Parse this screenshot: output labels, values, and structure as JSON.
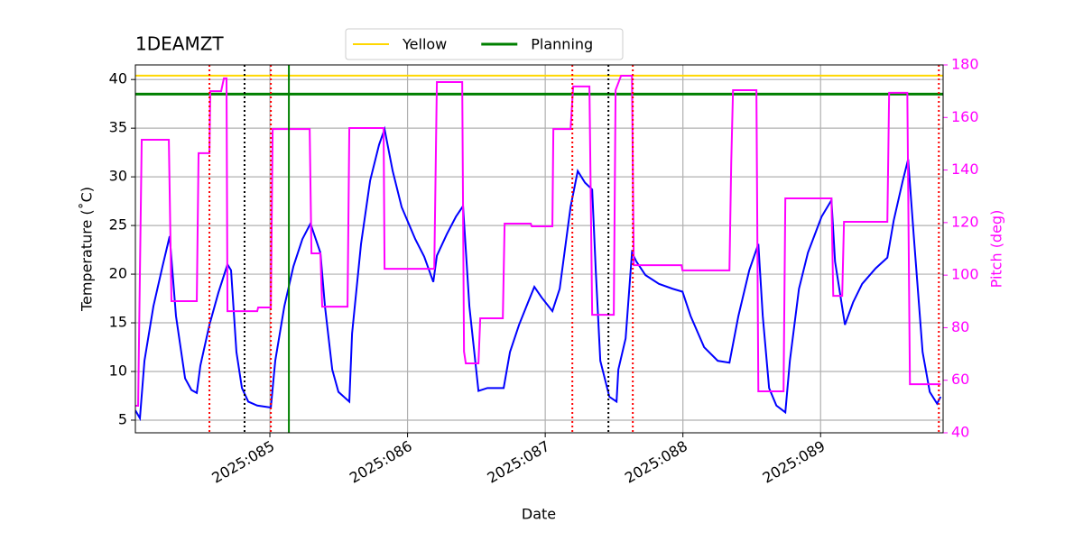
{
  "chart_data": {
    "type": "line",
    "title": "1DEAMZT",
    "xlabel": "Date",
    "ylabel": "Temperature (˚C)",
    "y2label": "Pitch (deg)",
    "y2color": "#ff00ff",
    "xlim": [
      84.023,
      89.89
    ],
    "xticks": [
      {
        "value": 85,
        "label": "2025:085"
      },
      {
        "value": 86,
        "label": "2025:086"
      },
      {
        "value": 87,
        "label": "2025:087"
      },
      {
        "value": 88,
        "label": "2025:088"
      },
      {
        "value": 89,
        "label": "2025:089"
      }
    ],
    "ylim": [
      3.7,
      41.5
    ],
    "yticks": [
      5,
      10,
      15,
      20,
      25,
      30,
      35,
      40
    ],
    "y2lim": [
      40,
      180
    ],
    "y2ticks": [
      40,
      60,
      80,
      100,
      120,
      140,
      160,
      180
    ],
    "grid": true,
    "legend": "upper center",
    "hlines": [
      {
        "name": "Yellow",
        "color": "#ffd700",
        "value": 40.4,
        "width": 2
      },
      {
        "name": "Planning",
        "color": "#008000",
        "value": 38.5,
        "width": 3
      }
    ],
    "vlines": [
      {
        "x": 84.561,
        "color": "#ff0000",
        "dotted": true
      },
      {
        "x": 85.007,
        "color": "#ff0000",
        "dotted": true
      },
      {
        "x": 87.197,
        "color": "#ff0000",
        "dotted": true
      },
      {
        "x": 87.636,
        "color": "#ff0000",
        "dotted": true
      },
      {
        "x": 89.859,
        "color": "#ff0000",
        "dotted": true
      },
      {
        "x": 84.816,
        "color": "#000000",
        "dotted": true
      },
      {
        "x": 87.459,
        "color": "#000000",
        "dotted": true
      },
      {
        "x": 85.138,
        "color": "#008000",
        "dotted": false
      }
    ],
    "series": [
      {
        "color": "#0000ff",
        "x": [
          84.023,
          84.056,
          84.089,
          84.154,
          84.22,
          84.272,
          84.318,
          84.384,
          84.43,
          84.469,
          84.495,
          84.561,
          84.626,
          84.692,
          84.718,
          84.757,
          84.797,
          84.843,
          84.908,
          85.007,
          85.039,
          85.105,
          85.171,
          85.236,
          85.295,
          85.367,
          85.4,
          85.453,
          85.498,
          85.577,
          85.597,
          85.662,
          85.728,
          85.793,
          85.833,
          85.892,
          85.957,
          86.056,
          86.121,
          86.187,
          86.213,
          86.285,
          86.351,
          86.403,
          86.449,
          86.515,
          86.58,
          86.698,
          86.744,
          86.81,
          86.875,
          86.921,
          86.974,
          87.052,
          87.105,
          87.184,
          87.236,
          87.289,
          87.341,
          87.367,
          87.4,
          87.466,
          87.518,
          87.531,
          87.584,
          87.63,
          87.662,
          87.728,
          87.826,
          87.925,
          87.997,
          88.056,
          88.154,
          88.253,
          88.338,
          88.403,
          88.482,
          88.548,
          88.58,
          88.626,
          88.679,
          88.744,
          88.777,
          88.843,
          88.908,
          89.007,
          89.079,
          89.105,
          89.177,
          89.236,
          89.302,
          89.4,
          89.485,
          89.531,
          89.597,
          89.636,
          89.676,
          89.741,
          89.793,
          89.846,
          89.872
        ],
        "values": [
          6.0,
          5.2,
          11.1,
          16.7,
          20.8,
          23.9,
          15.7,
          9.3,
          8.1,
          7.8,
          10.6,
          14.8,
          18.1,
          21.0,
          20.4,
          12.0,
          8.3,
          6.9,
          6.5,
          6.3,
          11.1,
          16.7,
          20.8,
          23.6,
          25.2,
          22.2,
          16.7,
          10.2,
          7.9,
          6.9,
          13.9,
          23.1,
          29.6,
          33.3,
          34.9,
          30.6,
          26.9,
          23.6,
          21.8,
          19.2,
          21.9,
          24.1,
          25.9,
          27.0,
          16.7,
          8.0,
          8.3,
          8.3,
          12.0,
          14.8,
          17.1,
          18.7,
          17.6,
          16.2,
          18.5,
          26.9,
          30.6,
          29.4,
          28.7,
          20.4,
          11.1,
          7.4,
          6.9,
          10.2,
          13.4,
          22.2,
          21.3,
          19.9,
          19.0,
          18.5,
          18.2,
          15.7,
          12.5,
          11.1,
          10.9,
          15.7,
          20.4,
          23.1,
          15.7,
          8.3,
          6.5,
          5.8,
          11.1,
          18.5,
          22.2,
          25.9,
          27.6,
          21.3,
          14.8,
          17.1,
          19.0,
          20.6,
          21.7,
          25.5,
          29.6,
          31.8,
          24.1,
          12.0,
          7.9,
          6.7,
          7.4
        ]
      },
      {
        "color": "#ff00ff",
        "axis": "y2",
        "x": [
          84.023,
          84.043,
          84.069,
          84.266,
          84.285,
          84.469,
          84.482,
          84.561,
          84.567,
          84.646,
          84.666,
          84.685,
          84.692,
          84.908,
          84.915,
          85.007,
          85.02,
          85.289,
          85.302,
          85.367,
          85.38,
          85.564,
          85.577,
          85.826,
          85.833,
          86.194,
          86.207,
          86.213,
          86.397,
          86.41,
          86.423,
          86.515,
          86.528,
          86.692,
          86.705,
          86.895,
          86.902,
          87.052,
          87.059,
          87.184,
          87.203,
          87.321,
          87.341,
          87.498,
          87.511,
          87.551,
          87.63,
          87.643,
          87.99,
          87.997,
          88.338,
          88.351,
          88.364,
          88.534,
          88.548,
          88.731,
          88.744,
          89.079,
          89.092,
          89.157,
          89.17,
          89.485,
          89.498,
          89.63,
          89.649,
          89.859,
          89.872
        ],
        "values": [
          50.3,
          50.3,
          151.5,
          151.5,
          90.1,
          90.1,
          146.4,
          146.4,
          170.0,
          170.0,
          174.9,
          174.9,
          86.3,
          86.3,
          87.7,
          87.7,
          155.6,
          155.6,
          108.3,
          108.3,
          88.0,
          88.0,
          156.0,
          156.0,
          102.4,
          102.4,
          151.5,
          173.5,
          173.5,
          70.9,
          66.4,
          66.4,
          83.6,
          83.6,
          119.6,
          119.6,
          118.6,
          118.6,
          155.6,
          155.6,
          171.8,
          171.8,
          84.9,
          84.9,
          170.4,
          175.9,
          175.9,
          103.8,
          103.8,
          101.8,
          101.8,
          142.9,
          170.4,
          170.4,
          55.8,
          55.8,
          129.2,
          129.2,
          92.1,
          92.1,
          120.3,
          120.3,
          169.4,
          169.4,
          58.5,
          58.5,
          58.5
        ]
      }
    ]
  }
}
